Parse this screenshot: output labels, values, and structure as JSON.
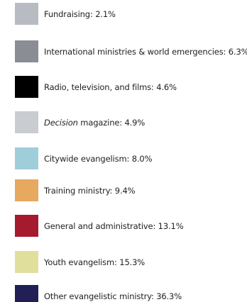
{
  "chart_data": {
    "type": "pie",
    "legend_position": "list",
    "series": [
      {
        "label": "Fundraising",
        "value": 2.1,
        "display": "Fundraising: 2.1%",
        "color": "#b8bcc2"
      },
      {
        "label": "International ministries & world emergencies",
        "value": 6.3,
        "display": "International ministries & world emergencies: 6.3%",
        "color": "#8a8d93"
      },
      {
        "label": "Radio, television, and films",
        "value": 4.6,
        "display": "Radio, television, and films: 4.6%",
        "color": "#000000"
      },
      {
        "label": "Decision magazine",
        "value": 4.9,
        "display_em": "Decision",
        "display_rest": " magazine: 4.9%",
        "color": "#c9ccd1"
      },
      {
        "label": "Citywide evangelism",
        "value": 8.0,
        "display": "Citywide evangelism: 8.0%",
        "color": "#9fcdd9"
      },
      {
        "label": "Training ministry",
        "value": 9.4,
        "display": "Training ministry: 9.4%",
        "color": "#e7a85f"
      },
      {
        "label": "General and administrative",
        "value": 13.1,
        "display": "General and administrative: 13.1%",
        "color": "#a51a2f"
      },
      {
        "label": "Youth evangelism",
        "value": 15.3,
        "display": "Youth evangelism: 15.3%",
        "color": "#e0df9c"
      },
      {
        "label": "Other evangelistic ministry",
        "value": 36.3,
        "display": "Other evangelistic ministry: 36.3%",
        "color": "#221f56"
      }
    ]
  }
}
